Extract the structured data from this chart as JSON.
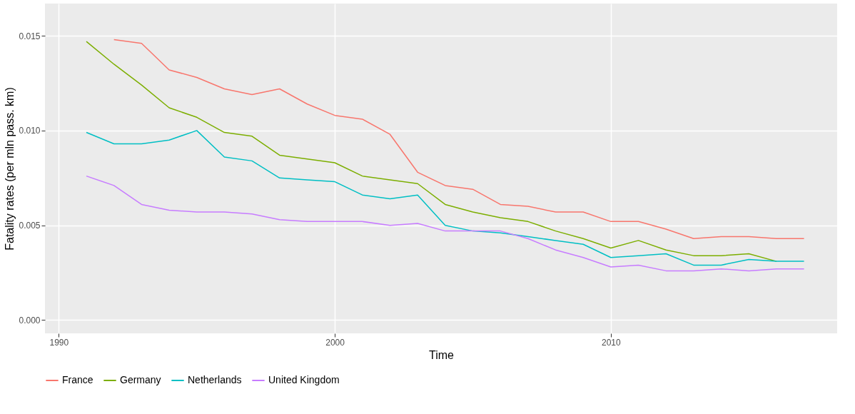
{
  "chart_data": {
    "type": "line",
    "xlabel": "Time",
    "ylabel": "Fatality rates (per mln pass. km)",
    "x": [
      1991,
      1992,
      1993,
      1994,
      1995,
      1996,
      1997,
      1998,
      1999,
      2000,
      2001,
      2002,
      2003,
      2004,
      2005,
      2006,
      2007,
      2008,
      2009,
      2010,
      2011,
      2012,
      2013,
      2014,
      2015,
      2016,
      2017
    ],
    "series": [
      {
        "name": "France",
        "color": "#f8766d",
        "values": [
          null,
          0.0148,
          0.0146,
          0.0132,
          0.0128,
          0.0122,
          0.0119,
          0.0122,
          0.0114,
          0.0108,
          0.0106,
          0.0098,
          0.0078,
          0.0071,
          0.0069,
          0.0061,
          0.006,
          0.0057,
          0.0057,
          0.0052,
          0.0052,
          0.0048,
          0.0043,
          0.0044,
          0.0044,
          0.0043,
          0.0043
        ]
      },
      {
        "name": "Germany",
        "color": "#7cae00",
        "values": [
          0.0147,
          0.0135,
          0.0124,
          0.0112,
          0.0107,
          0.0099,
          0.0097,
          0.0087,
          0.0085,
          0.0083,
          0.0076,
          0.0074,
          0.0072,
          0.0061,
          0.0057,
          0.0054,
          0.0052,
          0.0047,
          0.0043,
          0.0038,
          0.0042,
          0.0037,
          0.0034,
          0.0034,
          0.0035,
          0.0031,
          null
        ]
      },
      {
        "name": "Netherlands",
        "color": "#00bfc4",
        "values": [
          0.0099,
          0.0093,
          0.0093,
          0.0095,
          0.01,
          0.0086,
          0.0084,
          0.0075,
          0.0074,
          0.0073,
          0.0066,
          0.0064,
          0.0066,
          0.005,
          0.0047,
          0.0046,
          0.0044,
          0.0042,
          0.004,
          0.0033,
          0.0034,
          0.0035,
          0.0029,
          0.0029,
          0.0032,
          0.0031,
          0.0031
        ]
      },
      {
        "name": "United Kingdom",
        "color": "#c77cff",
        "values": [
          0.0076,
          0.0071,
          0.0061,
          0.0058,
          0.0057,
          0.0057,
          0.0056,
          0.0053,
          0.0052,
          0.0052,
          0.0052,
          0.005,
          0.0051,
          0.0047,
          0.0047,
          0.0047,
          0.0043,
          0.0037,
          0.0033,
          0.0028,
          0.0029,
          0.0026,
          0.0026,
          0.0027,
          0.0026,
          0.0027,
          0.0027
        ]
      }
    ],
    "xlim": [
      1989.5,
      2018.2
    ],
    "xticks": [
      1990,
      2000,
      2010
    ],
    "ylim": [
      -0.0007,
      0.0167
    ],
    "yticks": [
      {
        "value": 0,
        "label": "0.000"
      },
      {
        "value": 0.005,
        "label": "0.005"
      },
      {
        "value": 0.01,
        "label": "0.010"
      },
      {
        "value": 0.015,
        "label": "0.015"
      }
    ],
    "grid": true,
    "legend": "bottom"
  }
}
